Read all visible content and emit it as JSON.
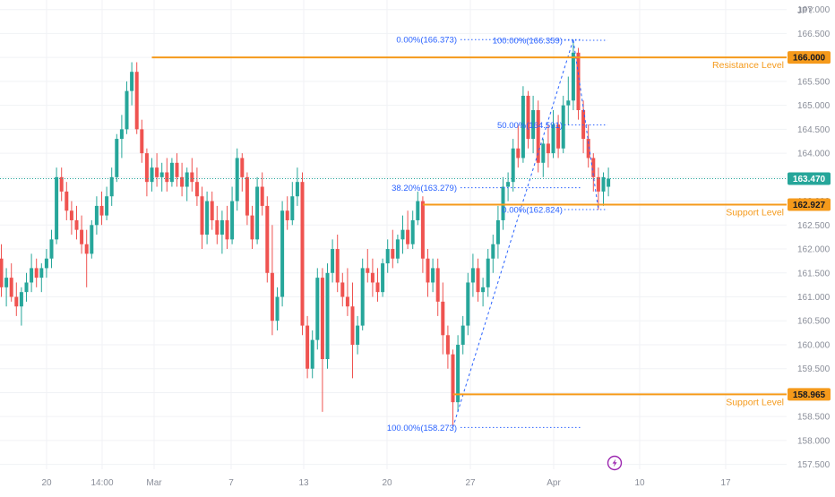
{
  "currency_label": "JPY",
  "colors": {
    "up": "#26a69a",
    "down": "#ef5350",
    "level": "#f59a1b",
    "fib": "#2962ff",
    "last_price": "#26a69a",
    "axis_text": "#8a8e99",
    "grid": "#f0f2f5"
  },
  "flash_icon": "lightning-icon",
  "chart_data": {
    "type": "candlestick",
    "ylim": [
      157.4,
      167.2
    ],
    "y_ticks": [
      "157.500",
      "158.000",
      "158.500",
      "159.000",
      "159.500",
      "160.000",
      "160.500",
      "161.000",
      "161.500",
      "162.000",
      "162.500",
      "163.000",
      "163.500",
      "164.000",
      "164.500",
      "165.000",
      "165.500",
      "166.000",
      "166.500",
      "167.000"
    ],
    "x_ticks": [
      "20",
      "14:00",
      "Mar",
      "7",
      "13",
      "20",
      "27",
      "Apr",
      "10",
      "17"
    ],
    "last_price": {
      "value": 163.47,
      "label": "163.470"
    },
    "levels": [
      {
        "name": "Resistance Level",
        "value": 166.0,
        "tag": "166.000",
        "start_index": 30
      },
      {
        "name": "Support Level",
        "value": 162.927,
        "tag": "162.927",
        "start_index": 84
      },
      {
        "name": "Support Level",
        "value": 158.965,
        "tag": "158.965",
        "start_index": 90
      }
    ],
    "fib_retracements": [
      {
        "start": {
          "index": 90,
          "price": 158.273
        },
        "end": {
          "index": 114,
          "price": 166.373
        },
        "extend_to_index": 114,
        "levels": [
          {
            "label": "0.00%(166.373)",
            "value": 166.373
          },
          {
            "label": "38.20%(163.279)",
            "value": 163.279
          },
          {
            "label": "100.00%(158.273)",
            "value": 158.273
          }
        ]
      },
      {
        "start": {
          "index": 114,
          "price": 166.359
        },
        "end": {
          "index": 119,
          "price": 162.824
        },
        "levels": [
          {
            "label": "100.00%(166.359)",
            "value": 166.359
          },
          {
            "label": "50.00%(164.591)",
            "value": 164.591
          },
          {
            "label": "0.00%(162.824)",
            "value": 162.824
          }
        ]
      }
    ],
    "candles": [
      [
        161.8,
        162.1,
        161.0,
        161.2
      ],
      [
        161.2,
        161.6,
        160.8,
        161.4
      ],
      [
        161.4,
        161.7,
        160.9,
        161.0
      ],
      [
        161.0,
        161.3,
        160.6,
        160.8
      ],
      [
        160.8,
        161.2,
        160.4,
        161.1
      ],
      [
        161.1,
        161.5,
        160.9,
        161.3
      ],
      [
        161.3,
        161.9,
        161.1,
        161.6
      ],
      [
        161.6,
        161.8,
        161.2,
        161.4
      ],
      [
        161.4,
        161.7,
        161.1,
        161.6
      ],
      [
        161.6,
        162.0,
        161.4,
        161.8
      ],
      [
        161.8,
        162.4,
        161.6,
        162.2
      ],
      [
        162.2,
        163.7,
        162.1,
        163.5
      ],
      [
        163.5,
        163.7,
        163.0,
        163.2
      ],
      [
        163.2,
        163.4,
        162.6,
        162.8
      ],
      [
        162.8,
        163.0,
        162.3,
        162.6
      ],
      [
        162.6,
        162.9,
        162.2,
        162.4
      ],
      [
        162.4,
        162.7,
        161.9,
        162.1
      ],
      [
        162.1,
        162.4,
        161.2,
        161.9
      ],
      [
        161.9,
        162.6,
        161.8,
        162.5
      ],
      [
        162.5,
        163.1,
        162.3,
        162.9
      ],
      [
        162.9,
        163.2,
        162.5,
        162.7
      ],
      [
        162.7,
        163.3,
        162.6,
        163.1
      ],
      [
        163.1,
        163.7,
        162.9,
        163.5
      ],
      [
        163.5,
        164.4,
        163.4,
        164.3
      ],
      [
        164.3,
        164.8,
        163.9,
        164.5
      ],
      [
        164.5,
        165.5,
        164.4,
        165.3
      ],
      [
        165.3,
        165.9,
        165.0,
        165.7
      ],
      [
        165.7,
        165.9,
        164.4,
        164.5
      ],
      [
        164.5,
        164.7,
        163.8,
        164.0
      ],
      [
        164.0,
        164.1,
        163.1,
        163.4
      ],
      [
        163.4,
        163.9,
        163.2,
        163.7
      ],
      [
        163.7,
        164.0,
        163.3,
        163.5
      ],
      [
        163.5,
        163.8,
        163.2,
        163.6
      ],
      [
        163.6,
        163.9,
        163.2,
        163.4
      ],
      [
        163.4,
        163.9,
        163.3,
        163.8
      ],
      [
        163.8,
        164.0,
        163.3,
        163.5
      ],
      [
        163.5,
        163.8,
        163.1,
        163.3
      ],
      [
        163.3,
        163.7,
        163.0,
        163.6
      ],
      [
        163.6,
        163.9,
        163.2,
        163.4
      ],
      [
        163.4,
        163.7,
        162.9,
        163.1
      ],
      [
        163.1,
        163.3,
        162.0,
        162.3
      ],
      [
        162.3,
        163.2,
        162.1,
        163.0
      ],
      [
        163.0,
        163.2,
        162.4,
        162.6
      ],
      [
        162.6,
        162.9,
        162.1,
        162.3
      ],
      [
        162.3,
        162.8,
        161.9,
        162.6
      ],
      [
        162.6,
        162.9,
        162.0,
        162.2
      ],
      [
        162.2,
        163.3,
        162.1,
        163.0
      ],
      [
        163.0,
        164.1,
        162.8,
        163.9
      ],
      [
        163.9,
        164.0,
        163.2,
        163.5
      ],
      [
        163.5,
        163.6,
        162.5,
        162.7
      ],
      [
        162.7,
        162.9,
        162.0,
        162.2
      ],
      [
        162.2,
        163.5,
        162.1,
        163.3
      ],
      [
        163.3,
        163.6,
        162.7,
        162.9
      ],
      [
        162.9,
        163.1,
        161.3,
        161.5
      ],
      [
        161.5,
        162.5,
        160.2,
        160.5
      ],
      [
        160.5,
        161.2,
        160.3,
        161.0
      ],
      [
        161.0,
        163.0,
        160.8,
        162.8
      ],
      [
        162.8,
        163.1,
        162.4,
        162.6
      ],
      [
        162.6,
        163.4,
        162.5,
        163.1
      ],
      [
        163.1,
        163.7,
        162.9,
        163.4
      ],
      [
        163.4,
        163.6,
        160.2,
        160.4
      ],
      [
        160.4,
        160.6,
        159.3,
        159.5
      ],
      [
        159.5,
        160.3,
        159.3,
        160.1
      ],
      [
        160.1,
        161.6,
        159.9,
        161.4
      ],
      [
        161.4,
        161.6,
        158.6,
        159.7
      ],
      [
        159.7,
        161.7,
        159.5,
        161.5
      ],
      [
        161.5,
        162.2,
        161.3,
        162.0
      ],
      [
        162.0,
        162.3,
        161.1,
        161.3
      ],
      [
        161.3,
        161.5,
        160.8,
        161.0
      ],
      [
        161.0,
        161.6,
        160.6,
        160.8
      ],
      [
        160.8,
        161.3,
        159.3,
        160.0
      ],
      [
        160.0,
        160.6,
        159.8,
        160.4
      ],
      [
        160.4,
        161.8,
        160.3,
        161.6
      ],
      [
        161.6,
        162.0,
        161.3,
        161.5
      ],
      [
        161.5,
        161.8,
        161.0,
        161.3
      ],
      [
        161.3,
        161.6,
        160.9,
        161.1
      ],
      [
        161.1,
        161.8,
        161.0,
        161.7
      ],
      [
        161.7,
        162.2,
        161.5,
        162.0
      ],
      [
        162.0,
        162.4,
        161.6,
        161.8
      ],
      [
        161.8,
        162.3,
        161.7,
        162.2
      ],
      [
        162.2,
        162.7,
        161.9,
        162.4
      ],
      [
        162.4,
        162.8,
        162.0,
        162.1
      ],
      [
        162.1,
        162.8,
        162.0,
        162.6
      ],
      [
        162.6,
        163.2,
        162.5,
        163.0
      ],
      [
        163.0,
        163.1,
        161.5,
        161.8
      ],
      [
        161.8,
        162.0,
        161.0,
        161.3
      ],
      [
        161.3,
        161.8,
        161.1,
        161.6
      ],
      [
        161.6,
        161.8,
        160.6,
        160.9
      ],
      [
        160.9,
        161.3,
        159.8,
        160.2
      ],
      [
        160.2,
        160.4,
        159.5,
        159.8
      ],
      [
        159.8,
        159.9,
        158.3,
        158.8
      ],
      [
        158.8,
        160.2,
        158.6,
        160.0
      ],
      [
        160.0,
        160.6,
        159.8,
        160.4
      ],
      [
        160.4,
        161.5,
        160.2,
        161.3
      ],
      [
        161.3,
        161.9,
        161.0,
        161.6
      ],
      [
        161.6,
        161.8,
        160.9,
        161.1
      ],
      [
        161.1,
        161.4,
        160.8,
        161.2
      ],
      [
        161.2,
        162.0,
        161.0,
        161.8
      ],
      [
        161.8,
        162.3,
        161.5,
        162.1
      ],
      [
        162.1,
        162.9,
        161.8,
        162.6
      ],
      [
        162.6,
        163.5,
        162.4,
        163.3
      ],
      [
        163.3,
        163.6,
        163.0,
        163.4
      ],
      [
        163.4,
        164.3,
        163.2,
        164.1
      ],
      [
        164.1,
        164.6,
        163.7,
        163.9
      ],
      [
        163.9,
        165.4,
        163.8,
        165.2
      ],
      [
        165.2,
        165.3,
        164.1,
        164.3
      ],
      [
        164.3,
        165.2,
        164.0,
        164.9
      ],
      [
        164.9,
        165.1,
        163.6,
        163.8
      ],
      [
        163.8,
        164.3,
        163.5,
        164.2
      ],
      [
        164.2,
        164.6,
        163.7,
        164.0
      ],
      [
        164.0,
        164.9,
        163.9,
        164.6
      ],
      [
        164.6,
        164.8,
        163.9,
        164.1
      ],
      [
        164.1,
        165.2,
        164.0,
        165.0
      ],
      [
        165.0,
        165.6,
        164.6,
        165.1
      ],
      [
        165.1,
        166.37,
        164.9,
        166.1
      ],
      [
        166.1,
        166.2,
        164.7,
        164.9
      ],
      [
        164.9,
        165.1,
        164.0,
        164.3
      ],
      [
        164.3,
        164.6,
        163.7,
        163.9
      ],
      [
        163.9,
        164.0,
        163.2,
        163.5
      ],
      [
        163.5,
        163.7,
        162.82,
        163.2
      ],
      [
        163.2,
        163.6,
        162.9,
        163.5
      ],
      [
        163.3,
        163.7,
        163.1,
        163.47
      ]
    ]
  }
}
